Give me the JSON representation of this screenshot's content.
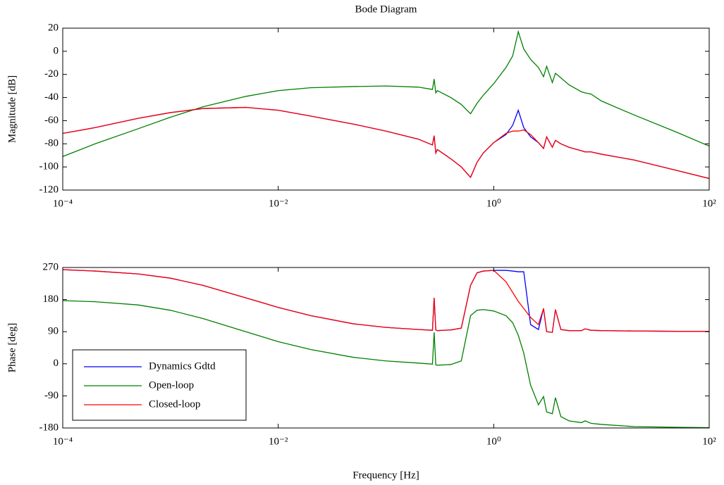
{
  "chart_data": [
    {
      "type": "line",
      "title": "Bode Diagram",
      "ylabel": "Magnitude [dB]",
      "xscale": "log",
      "xlim": [
        0.0001,
        100
      ],
      "xticks": [
        {
          "value": 0.0001,
          "label": "10⁻⁴"
        },
        {
          "value": 0.01,
          "label": "10⁻²"
        },
        {
          "value": 1,
          "label": "10⁰"
        },
        {
          "value": 100,
          "label": "10²"
        }
      ],
      "ylim": [
        -120,
        20
      ],
      "yticks": [
        20,
        0,
        -20,
        -40,
        -60,
        -80,
        -100,
        -120
      ],
      "x": [
        0.0001,
        0.0002,
        0.0005,
        0.001,
        0.002,
        0.005,
        0.01,
        0.02,
        0.05,
        0.1,
        0.2,
        0.27,
        0.28,
        0.29,
        0.3,
        0.4,
        0.5,
        0.61,
        0.7,
        0.8,
        1,
        1.3,
        1.5,
        1.69,
        1.9,
        2.2,
        2.6,
        2.9,
        3.1,
        3.5,
        3.74,
        4.2,
        5,
        6.5,
        7.07,
        8,
        10,
        20,
        50,
        100
      ],
      "series": [
        {
          "color": "#0000ff",
          "values": [
            -71,
            -66,
            -58,
            -53,
            -49.5,
            -48.5,
            -51,
            -56,
            -63,
            -69,
            -76,
            -81,
            -73,
            -88,
            -85,
            -93,
            -100,
            -109,
            -96,
            -88,
            -79,
            -72,
            -64,
            -51,
            -66,
            -74,
            -79,
            -84,
            -74,
            -83,
            -77,
            -80,
            -83,
            -86,
            -87,
            -87,
            -89,
            -94,
            -103,
            -110
          ]
        },
        {
          "color": "#008000",
          "values": [
            -91,
            -80,
            -67,
            -57,
            -48,
            -39,
            -34,
            -31.5,
            -30.5,
            -30,
            -31,
            -33,
            -24,
            -36,
            -34,
            -40,
            -46,
            -54,
            -45,
            -38,
            -28,
            -14,
            -4,
            17,
            2,
            -7,
            -14,
            -22,
            -13,
            -27,
            -19,
            -23,
            -29,
            -35,
            -36,
            -37,
            -43,
            -55,
            -70,
            -82
          ]
        },
        {
          "color": "#ff0000",
          "values": [
            -71,
            -66,
            -58,
            -53,
            -49.5,
            -48.5,
            -51,
            -56,
            -63,
            -69,
            -76,
            -81,
            -73,
            -88,
            -85,
            -93,
            -100,
            -109,
            -96,
            -88,
            -79,
            -71,
            -69,
            -69,
            -68,
            -72,
            -79,
            -84,
            -74,
            -83,
            -77,
            -80,
            -83,
            -86,
            -87,
            -87,
            -89,
            -94,
            -103,
            -110
          ]
        }
      ]
    },
    {
      "type": "line",
      "ylabel": "Phase [deg]",
      "xlabel": "Frequency [Hz]",
      "xscale": "log",
      "legend": "lower left",
      "xlim": [
        0.0001,
        100
      ],
      "xticks": [
        {
          "value": 0.0001,
          "label": "10⁻⁴"
        },
        {
          "value": 0.01,
          "label": "10⁻²"
        },
        {
          "value": 1,
          "label": "10⁰"
        },
        {
          "value": 100,
          "label": "10²"
        }
      ],
      "ylim": [
        -180,
        270
      ],
      "yticks": [
        270,
        180,
        90,
        0,
        -90,
        -180
      ],
      "x": [
        0.0001,
        0.0002,
        0.0005,
        0.001,
        0.002,
        0.005,
        0.01,
        0.02,
        0.05,
        0.1,
        0.2,
        0.27,
        0.28,
        0.29,
        0.3,
        0.4,
        0.5,
        0.61,
        0.7,
        0.8,
        1,
        1.3,
        1.5,
        1.69,
        1.9,
        2.2,
        2.6,
        2.9,
        3.1,
        3.5,
        3.74,
        4.2,
        5,
        6.5,
        7.07,
        8,
        10,
        20,
        50,
        100
      ],
      "series": [
        {
          "name": "Dynamics Gdtd",
          "color": "#0000ff",
          "values": [
            264,
            260,
            252,
            240,
            220,
            185,
            158,
            135,
            112,
            102,
            96,
            94,
            185,
            95,
            93,
            95,
            100,
            220,
            255,
            260,
            262,
            262,
            260,
            258,
            258,
            110,
            96,
            155,
            90,
            88,
            152,
            96,
            93,
            93,
            98,
            94,
            93,
            92,
            91,
            91
          ]
        },
        {
          "name": "Open-loop",
          "color": "#008000",
          "values": [
            177,
            174,
            165,
            150,
            127,
            90,
            62,
            40,
            18,
            8,
            2,
            -1,
            88,
            -3,
            -4,
            -2,
            8,
            135,
            150,
            152,
            148,
            135,
            115,
            80,
            30,
            -60,
            -115,
            -92,
            -135,
            -140,
            -95,
            -148,
            -160,
            -165,
            -160,
            -167,
            -170,
            -176,
            -178,
            -179
          ]
        },
        {
          "name": "Closed-loop",
          "color": "#ff0000",
          "values": [
            264,
            260,
            252,
            240,
            220,
            185,
            158,
            135,
            112,
            102,
            96,
            94,
            185,
            95,
            93,
            95,
            100,
            220,
            255,
            260,
            262,
            230,
            200,
            175,
            155,
            130,
            110,
            155,
            90,
            88,
            152,
            96,
            93,
            93,
            98,
            94,
            93,
            92,
            91,
            91
          ]
        }
      ]
    }
  ]
}
